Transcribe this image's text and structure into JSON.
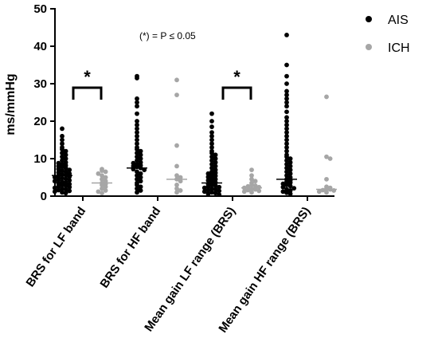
{
  "chart_data": {
    "type": "scatter",
    "ylabel": "ms/mmHg",
    "ylim": [
      0,
      50
    ],
    "yticks": [
      "0",
      "10",
      "20",
      "30",
      "40",
      "50"
    ],
    "categories": [
      "BRS for LF band",
      "BRS for HF band",
      "Mean gain LF range (BRS)",
      "Mean gain HF range (BRS)"
    ],
    "annotation": "(*) = P ≤ 0.05",
    "significance": [
      {
        "category": "BRS for LF band",
        "label": "*"
      },
      {
        "category": "Mean gain LF range (BRS)",
        "label": "*"
      }
    ],
    "legend_position": "top-right",
    "series": [
      {
        "name": "AIS",
        "color": "#000000",
        "medians": [
          5.5,
          7.5,
          3.5,
          4.5
        ],
        "values": [
          [
            18,
            16,
            15,
            14,
            13,
            12.5,
            12,
            11.5,
            11,
            10.5,
            10,
            9.5,
            9,
            8.8,
            8.5,
            8.2,
            8,
            7.8,
            7.5,
            7.2,
            7,
            6.8,
            6.5,
            6.3,
            6,
            5.8,
            5.6,
            5.4,
            5.2,
            5,
            4.8,
            4.6,
            4.4,
            4.2,
            4,
            3.8,
            3.6,
            3.4,
            3.2,
            3,
            2.8,
            2.6,
            2.4,
            2.2,
            2,
            1.8,
            1.6,
            1.4,
            1.2,
            1,
            0.8
          ],
          [
            32,
            31.5,
            26,
            25,
            24,
            22,
            20,
            19,
            18,
            17,
            16,
            15,
            14,
            13,
            12.5,
            12,
            11.5,
            11,
            10.5,
            10,
            9.5,
            9,
            8.8,
            8.5,
            8.2,
            8,
            7.8,
            7.5,
            7.2,
            7,
            6.5,
            6,
            5.5,
            5,
            4.5,
            4,
            3.5,
            3,
            2.5,
            2,
            1.5,
            1
          ],
          [
            22,
            20,
            18.5,
            17,
            16,
            15,
            14,
            13,
            12,
            11.5,
            11,
            10.5,
            10,
            9.5,
            9,
            8.5,
            8,
            7.5,
            7,
            6.5,
            6.2,
            6,
            5.7,
            5.4,
            5.1,
            4.8,
            4.5,
            4.2,
            3.9,
            3.6,
            3.3,
            3,
            2.8,
            2.6,
            2.4,
            2.2,
            2,
            1.8,
            1.6,
            1.4,
            1.2,
            1,
            0.8,
            0.6,
            0.4
          ],
          [
            43,
            35,
            32,
            30,
            28,
            27,
            26,
            25,
            24,
            22.5,
            21,
            20,
            19,
            18,
            17,
            16,
            15,
            14,
            13,
            12,
            11,
            10.5,
            10,
            9.5,
            9,
            8.5,
            8,
            7.5,
            7,
            6.5,
            6,
            5.5,
            5,
            4.5,
            4.2,
            3.9,
            3.6,
            3.3,
            3,
            2.7,
            2.4,
            2.1,
            1.8,
            1.5,
            1.2,
            0.9,
            0.6
          ]
        ]
      },
      {
        "name": "ICH",
        "color": "#a6a6a6",
        "medians": [
          3.5,
          4.5,
          2.2,
          1.8
        ],
        "values": [
          [
            7.2,
            6.8,
            6.5,
            6,
            5.5,
            5,
            4.5,
            4,
            3.5,
            3.2,
            3,
            2.5,
            2,
            1.5,
            1.2,
            0.8
          ],
          [
            31,
            27,
            13.5,
            8,
            5.5,
            5,
            4.5,
            4,
            3,
            2,
            1.5,
            1
          ],
          [
            7,
            5.5,
            4.5,
            4,
            3.5,
            3,
            2.8,
            2.6,
            2.4,
            2.2,
            2,
            1.8,
            1.6,
            1.4,
            1.2,
            1
          ],
          [
            26.5,
            10.5,
            10,
            4.5,
            2.5,
            2.2,
            2,
            1.8,
            1.6,
            1.5,
            1.2,
            1
          ]
        ]
      }
    ]
  }
}
